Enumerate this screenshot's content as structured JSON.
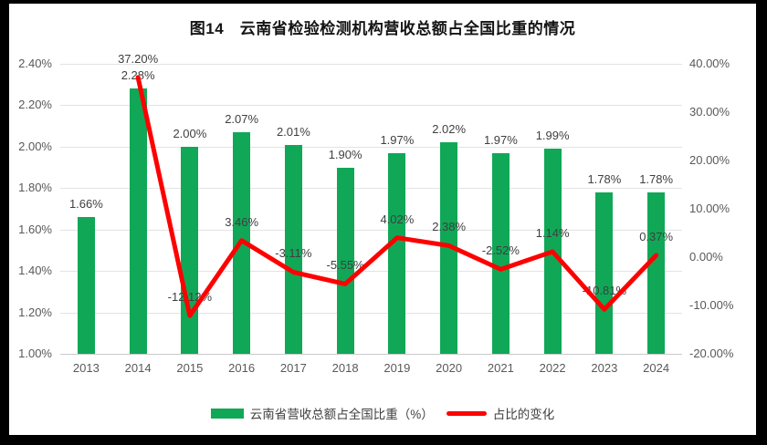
{
  "chart_data": {
    "type": "bar+line combo",
    "title": "图14　云南省检验检测机构营收总额占全国比重的情况",
    "categories": [
      "2013",
      "2014",
      "2015",
      "2016",
      "2017",
      "2018",
      "2019",
      "2020",
      "2021",
      "2022",
      "2023",
      "2024"
    ],
    "series": [
      {
        "name": "云南省营收总额占全国比重（%）",
        "type": "bar",
        "axis": "left",
        "color": "#10a857",
        "values": [
          1.66,
          2.28,
          2.0,
          2.07,
          2.01,
          1.9,
          1.97,
          2.02,
          1.97,
          1.99,
          1.78,
          1.78
        ],
        "labels": [
          "1.66%",
          "2.28%",
          "2.00%",
          "2.07%",
          "2.01%",
          "1.90%",
          "1.97%",
          "2.02%",
          "1.97%",
          "1.99%",
          "1.78%",
          "1.78%"
        ]
      },
      {
        "name": "占比的变化",
        "type": "line",
        "axis": "right",
        "color": "#ff0000",
        "values": [
          null,
          37.2,
          -12.12,
          3.46,
          -3.11,
          -5.55,
          4.02,
          2.38,
          -2.52,
          1.14,
          -10.81,
          0.37
        ],
        "labels": [
          null,
          "37.20%",
          "-12.12%",
          "3.46%",
          "-3.11%",
          "-5.55%",
          "4.02%",
          "2.38%",
          "-2.52%",
          "1.14%",
          "-10.81%",
          "0.37%"
        ]
      }
    ],
    "left_axis": {
      "min": 1.0,
      "max": 2.4,
      "ticks": [
        "2.40%",
        "2.20%",
        "2.00%",
        "1.80%",
        "1.60%",
        "1.40%",
        "1.20%",
        "1.00%"
      ]
    },
    "right_axis": {
      "min": -20,
      "max": 40,
      "ticks": [
        "40.00%",
        "30.00%",
        "20.00%",
        "10.00%",
        "0.00%",
        "-10.00%",
        "-20.00%"
      ]
    },
    "grid": true,
    "legend_position": "bottom",
    "legend": [
      {
        "label": "云南省营收总额占全国比重（%）",
        "swatch": "bar"
      },
      {
        "label": "占比的变化",
        "swatch": "line"
      }
    ]
  }
}
